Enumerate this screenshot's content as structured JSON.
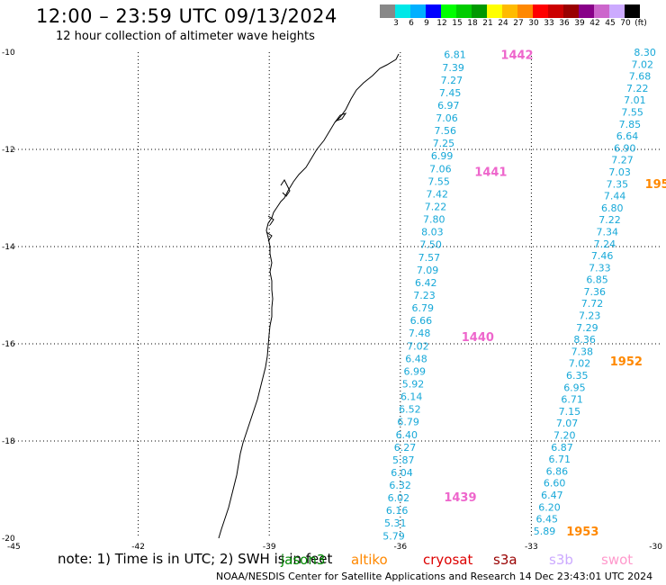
{
  "header": {
    "title": "12:00 – 23:59 UTC 09/13/2024",
    "subtitle": "12 hour collection of altimeter wave heights"
  },
  "colorbar": {
    "colors": [
      "#888888",
      "#00e8e8",
      "#00b0ff",
      "#0000ff",
      "#00ff00",
      "#00cc00",
      "#009900",
      "#ffff00",
      "#ffbb00",
      "#ff8800",
      "#ff0000",
      "#cc0000",
      "#990000",
      "#880088",
      "#cc66cc",
      "#ccaaff",
      "#000000"
    ],
    "labels": [
      "3",
      "6",
      "9",
      "12",
      "15",
      "18",
      "21",
      "24",
      "27",
      "30",
      "33",
      "36",
      "39",
      "42",
      "45",
      "70",
      "(ft)"
    ]
  },
  "axes": {
    "x_ticks": [
      "-45",
      "-42",
      "-39",
      "-36",
      "-33",
      "-30"
    ],
    "y_ticks": [
      "-10",
      "-12",
      "-14",
      "-16",
      "-18",
      "-20"
    ],
    "grid": "dotted"
  },
  "footer": {
    "note": "note:  1) Time is in UTC;  2) SWH is in feet",
    "credit": "NOAA/NESDIS Center for Satellite Applications and Research    14 Dec 23:43:01 UTC 2024",
    "legend": [
      {
        "name": "jason3",
        "color": "#008800"
      },
      {
        "name": "altiko",
        "color": "#ff8800"
      },
      {
        "name": "cryosat",
        "color": "#dd0000"
      },
      {
        "name": "s3a",
        "color": "#990000"
      },
      {
        "name": "s3b",
        "color": "#ccaaff"
      },
      {
        "name": "swot",
        "color": "#ff99cc"
      }
    ]
  },
  "chart_data": {
    "type": "map",
    "xlim": [
      -45,
      -30
    ],
    "ylim": [
      -20,
      -10
    ],
    "swh_color": "#17a8d8",
    "passes": [
      {
        "label": "1442",
        "color": "#ee66cc",
        "lon": -33.7,
        "lat": -10.05
      },
      {
        "label": "1441",
        "color": "#ee66cc",
        "lon": -34.3,
        "lat": -12.45
      },
      {
        "label": "1440",
        "color": "#ee66cc",
        "lon": -34.6,
        "lat": -15.85
      },
      {
        "label": "1439",
        "color": "#ee66cc",
        "lon": -35.0,
        "lat": -19.15
      },
      {
        "label": "195",
        "color": "#ff8800",
        "lon": -30.4,
        "lat": -12.7
      },
      {
        "label": "1952",
        "color": "#ff8800",
        "lon": -31.2,
        "lat": -16.35
      },
      {
        "label": "1953",
        "color": "#ff8800",
        "lon": -32.2,
        "lat": -19.85
      }
    ],
    "tracks": [
      {
        "name": "swot-track",
        "start": [
          -34.75,
          -10.05
        ],
        "end": [
          -36.15,
          -19.95
        ],
        "values": [
          "6.81",
          "7.39",
          "7.27",
          "7.45",
          "6.97",
          "7.06",
          "7.56",
          "7.25",
          "6.99",
          "7.06",
          "7.55",
          "7.42",
          "7.22",
          "7.80",
          "8.03",
          "7.50",
          "7.57",
          "7.09",
          "6.42",
          "7.23",
          "6.79",
          "6.66",
          "7.48",
          "7.02",
          "6.48",
          "6.99",
          "5.92",
          "6.14",
          "6.52",
          "6.79",
          "6.40",
          "6.27",
          "5.87",
          "6.04",
          "6.32",
          "6.02",
          "6.16",
          "5.31",
          "5.79"
        ]
      },
      {
        "name": "altika-track",
        "start": [
          -30.4,
          -10.0
        ],
        "end": [
          -32.7,
          -19.85
        ],
        "values": [
          "8.30",
          "7.02",
          "7.68",
          "7.22",
          "7.01",
          "7.55",
          "7.85",
          "6.64",
          "6.90",
          "7.27",
          "7.03",
          "7.35",
          "7.44",
          "6.80",
          "7.22",
          "7.34",
          "7.24",
          "7.46",
          "7.33",
          "6.85",
          "7.36",
          "7.72",
          "7.23",
          "7.29",
          "8.36",
          "7.38",
          "7.02",
          "6.35",
          "6.95",
          "6.71",
          "7.15",
          "7.07",
          "7.20",
          "6.87",
          "6.71",
          "6.86",
          "6.60",
          "6.47",
          "6.20",
          "6.45",
          "5.89"
        ]
      }
    ]
  }
}
